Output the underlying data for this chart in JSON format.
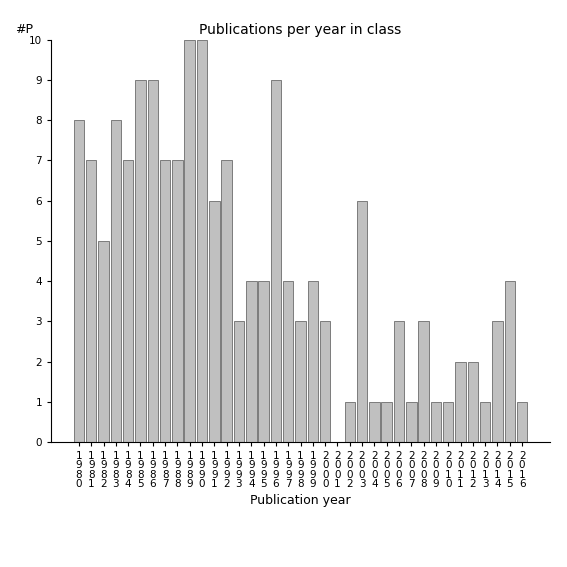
{
  "title": "Publications per year in class",
  "xlabel": "Publication year",
  "ylabel": "#P",
  "years": [
    1980,
    1981,
    1982,
    1983,
    1984,
    1985,
    1986,
    1987,
    1988,
    1989,
    1990,
    1991,
    1992,
    1993,
    1994,
    1995,
    1996,
    1997,
    1998,
    1999,
    2000,
    2001,
    2002,
    2003,
    2004,
    2005,
    2006,
    2007,
    2008,
    2009,
    2010,
    2011,
    2012,
    2013,
    2014,
    2015,
    2016
  ],
  "values": [
    8,
    7,
    5,
    8,
    7,
    9,
    9,
    7,
    7,
    10,
    10,
    6,
    7,
    3,
    4,
    4,
    9,
    4,
    3,
    4,
    3,
    0,
    1,
    6,
    1,
    1,
    3,
    1,
    3,
    1,
    1,
    2,
    2,
    1,
    3,
    4,
    1
  ],
  "bar_color": "#c0c0c0",
  "bar_edgecolor": "#555555",
  "ylim": [
    0,
    10
  ],
  "yticks": [
    0,
    1,
    2,
    3,
    4,
    5,
    6,
    7,
    8,
    9,
    10
  ],
  "background_color": "#ffffff",
  "title_fontsize": 10,
  "axis_fontsize": 9,
  "tick_fontsize": 7.5
}
